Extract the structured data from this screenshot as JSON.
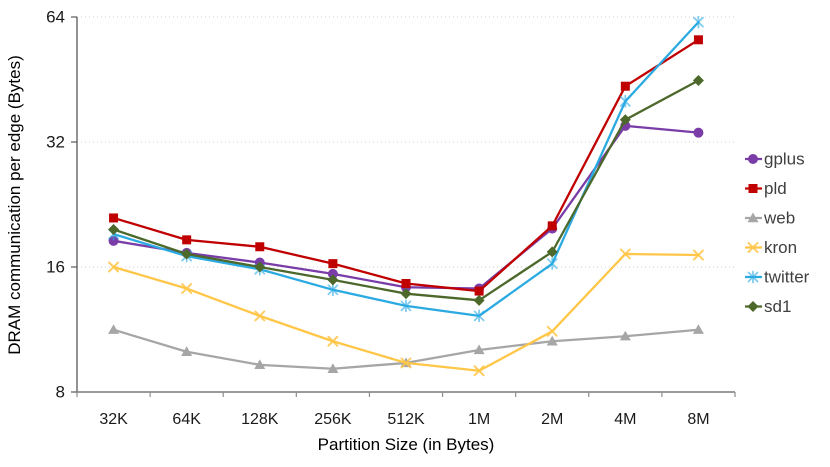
{
  "chart_data": {
    "type": "line",
    "title": "",
    "xlabel": "Partition Size (in Bytes)",
    "ylabel": "DRAM communication per edge (Bytes)",
    "x_categories": [
      "32K",
      "64K",
      "128K",
      "256K",
      "512K",
      "1M",
      "2M",
      "4M",
      "8M"
    ],
    "y_scale": "log2",
    "y_ticks": [
      "8",
      "16",
      "32",
      "64"
    ],
    "ylim": [
      8,
      64
    ],
    "grid": "horizontal dotted at 16, 32, 64",
    "legend_position": "right",
    "series": [
      {
        "name": "gplus",
        "color": "#7A3DA8",
        "marker": "circle",
        "values": [
          18.5,
          17.3,
          16.4,
          15.4,
          14.3,
          14.2,
          19.8,
          35.0,
          33.7
        ]
      },
      {
        "name": "pld",
        "color": "#C00000",
        "marker": "square",
        "values": [
          21.0,
          18.6,
          17.9,
          16.3,
          14.6,
          14.0,
          20.1,
          43.6,
          56.4
        ]
      },
      {
        "name": "web",
        "color": "#A6A6A6",
        "marker": "triangle",
        "values": [
          11.3,
          10.0,
          9.3,
          9.1,
          9.4,
          10.1,
          10.6,
          10.9,
          11.3
        ]
      },
      {
        "name": "kron",
        "color": "#FFC648",
        "marker": "x",
        "values": [
          16.0,
          14.2,
          12.2,
          10.6,
          9.4,
          9.0,
          11.2,
          17.2,
          17.1
        ]
      },
      {
        "name": "twitter",
        "color": "#2BAAE2",
        "marker": "star",
        "values": [
          19.2,
          17.0,
          15.8,
          14.1,
          12.9,
          12.2,
          16.3,
          40.1,
          62.2
        ]
      },
      {
        "name": "sd1",
        "color": "#4C682B",
        "marker": "diamond",
        "values": [
          19.7,
          17.2,
          16.0,
          14.9,
          13.8,
          13.3,
          17.4,
          36.2,
          45.0
        ]
      }
    ],
    "style": {
      "grid_color": "#D2D2D2",
      "axis_color": "#7F7F7F",
      "tick_label_color": "#1a1a1a",
      "axis_title_color": "#1a1a1a",
      "legend_text_color": "#3F3F3F"
    }
  }
}
